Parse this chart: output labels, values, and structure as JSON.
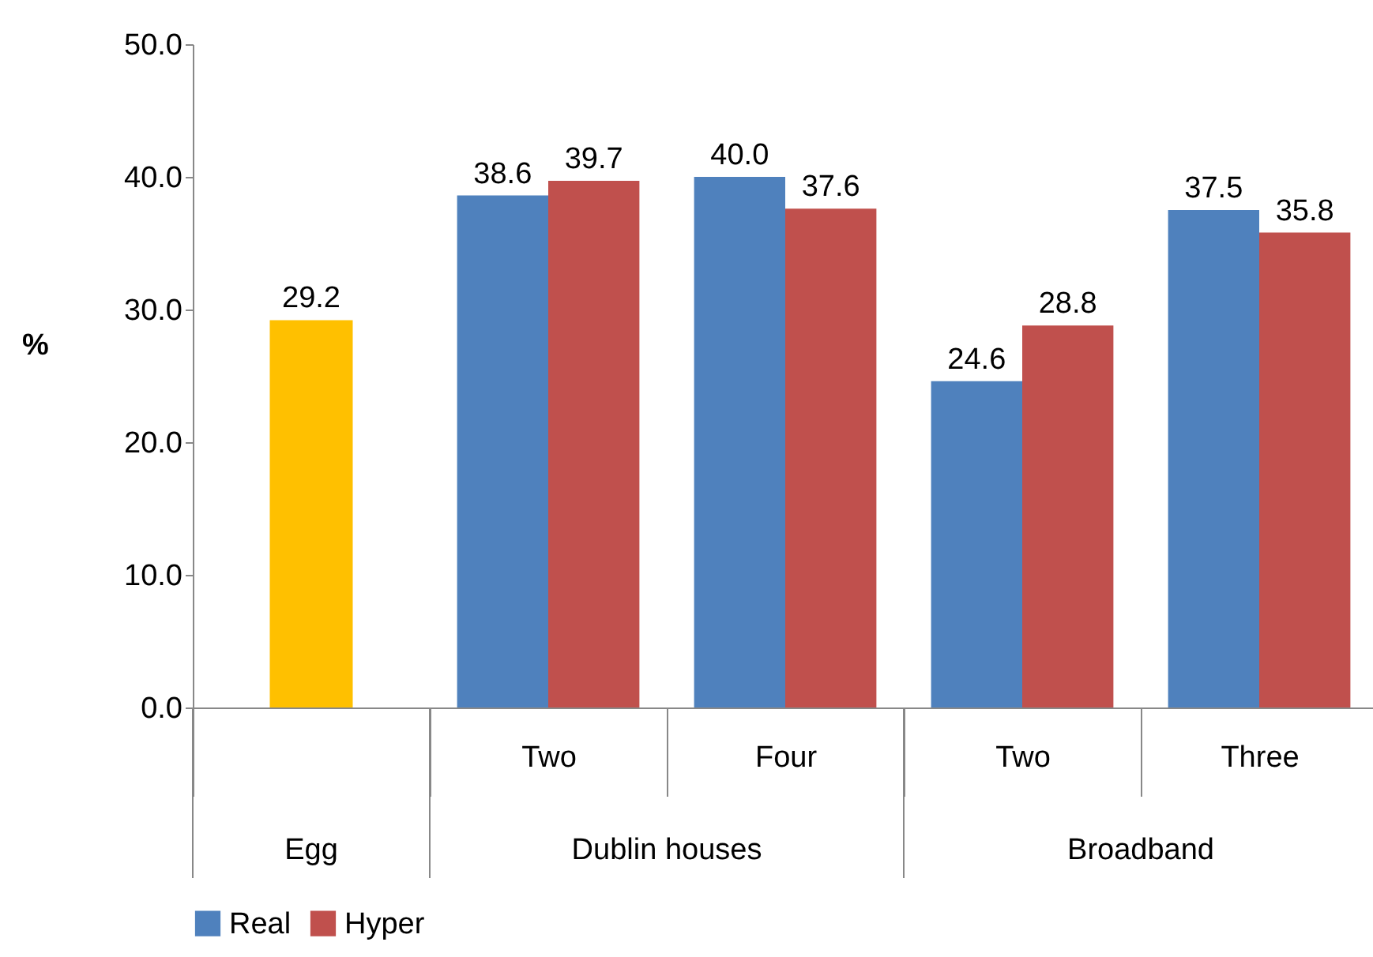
{
  "chart_data": {
    "type": "bar",
    "ylabel": "%",
    "categories": [
      null,
      "Two",
      "Four",
      "Two",
      "Three"
    ],
    "series": [
      {
        "name": "Real",
        "color": "#4f81bd",
        "values": [
          null,
          38.6,
          40.0,
          24.6,
          37.5
        ],
        "value_labels": [
          null,
          "38.6",
          "40.0",
          "24.6",
          "37.5"
        ]
      },
      {
        "name": "Hyper",
        "color": "#c0504d",
        "values": [
          null,
          39.7,
          37.6,
          28.8,
          35.8
        ],
        "value_labels": [
          null,
          "39.7",
          "37.6",
          "28.8",
          "35.8"
        ]
      },
      {
        "color": "#ffc000",
        "values": [
          29.2,
          null,
          null,
          null,
          null
        ],
        "value_labels": [
          "29.2",
          null,
          null,
          null,
          null
        ]
      }
    ],
    "annotations": [
      "Egg",
      "Dublin houses",
      "Broadband"
    ],
    "ylim": [
      0,
      50
    ],
    "yticks": [
      {
        "value": 0,
        "label": "0.0"
      },
      {
        "value": 10,
        "label": "10.0"
      },
      {
        "value": 20,
        "label": "20.0"
      },
      {
        "value": 30,
        "label": "30.0"
      },
      {
        "value": 40,
        "label": "40.0"
      },
      {
        "value": 50,
        "label": "50.0"
      }
    ],
    "grid": false,
    "legend": "bottom"
  }
}
